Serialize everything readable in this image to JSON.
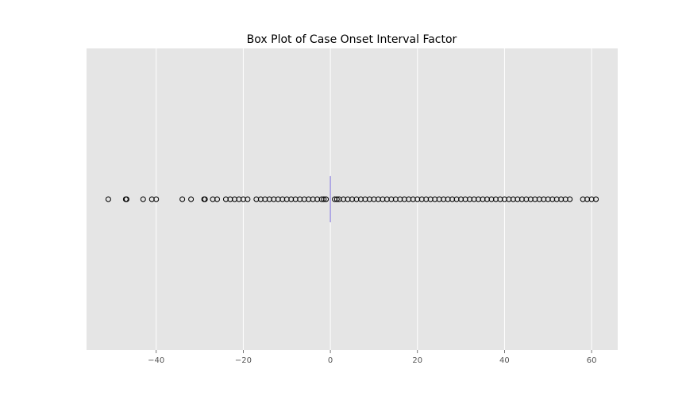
{
  "chart_data": {
    "type": "box",
    "orientation": "horizontal",
    "title": "Box Plot of Case Onset Interval Factor",
    "xlabel": "",
    "ylabel": "",
    "xlim": [
      -56,
      66
    ],
    "xticks": [
      -40,
      -20,
      0,
      20,
      40,
      60
    ],
    "xtick_labels": [
      "−40",
      "−20",
      "0",
      "20",
      "40",
      "60"
    ],
    "grid": true,
    "style": "ggplot",
    "box": {
      "q1": 0,
      "median": 0,
      "q3": 0,
      "whisker_low": 0,
      "whisker_high": 0
    },
    "outliers": [
      -51,
      -47,
      -46.8,
      -43,
      -41,
      -40,
      -34,
      -32,
      -29,
      -28.8,
      -27,
      -26,
      -24,
      -23,
      -22,
      -21,
      -20,
      -19,
      -17,
      -16,
      -15,
      -14,
      -13,
      -12,
      -11,
      -10,
      -9,
      -8,
      -7,
      -6,
      -5,
      -4,
      -3,
      -2,
      -1.5,
      -1,
      1,
      1.5,
      2,
      3,
      4,
      5,
      6,
      7,
      8,
      9,
      10,
      11,
      12,
      13,
      14,
      15,
      16,
      17,
      18,
      19,
      20,
      21,
      22,
      23,
      24,
      25,
      26,
      27,
      28,
      29,
      30,
      31,
      32,
      33,
      34,
      35,
      36,
      37,
      38,
      39,
      40,
      41,
      42,
      43,
      44,
      45,
      46,
      47,
      48,
      49,
      50,
      51,
      52,
      53,
      54,
      55,
      58,
      59,
      60,
      61
    ],
    "colors": {
      "background": "#e5e5e5",
      "grid": "#ffffff",
      "median": "#8172e0",
      "outlier_edge": "#000000"
    }
  }
}
